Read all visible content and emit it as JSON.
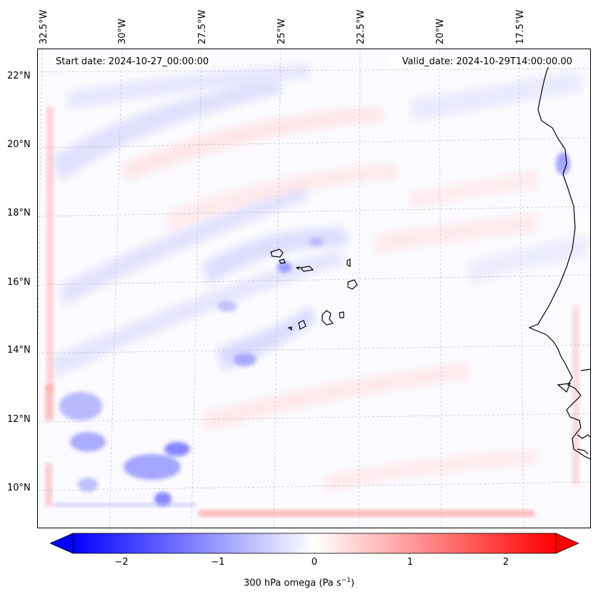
{
  "map": {
    "header_left": "Start date: 2024-10-27_00:00:00",
    "header_right": "Valid_date: 2024-10-29T14:00:00.00",
    "lon_labels": [
      "32.5°W",
      "30°W",
      "27.5°W",
      "25°W",
      "22.5°W",
      "20°W",
      "17.5°W"
    ],
    "lat_labels": [
      "22°N",
      "20°N",
      "18°N",
      "16°N",
      "14°N",
      "12°N",
      "10°N"
    ],
    "field": "300 hPa omega",
    "region": "Cape Verde / West Africa coast",
    "colormap": "bwr",
    "coastline_color": "#000000"
  },
  "colorbar": {
    "ticks": [
      "−2",
      "−1",
      "0",
      "1",
      "2"
    ],
    "tick_values": [
      -2,
      -1,
      0,
      1,
      2
    ],
    "range": [
      -2.5,
      2.5
    ],
    "extend": "both",
    "label_main": "300 hPa omega (Pa s",
    "label_sup": "−1",
    "label_end": ")"
  }
}
